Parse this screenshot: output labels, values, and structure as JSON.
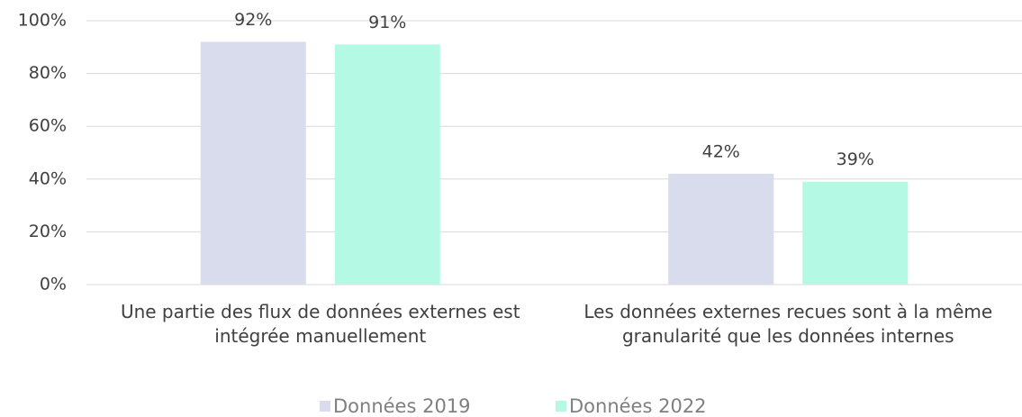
{
  "chart_data": {
    "type": "bar",
    "categories": [
      "Une partie des flux de données externes est intégrée manuellement",
      "Les données externes recues sont à la même granularité que les données internes"
    ],
    "series": [
      {
        "name": "Données 2019",
        "color": "#d9dcec",
        "values": [
          92,
          42
        ],
        "value_labels": [
          "92%",
          "42%"
        ]
      },
      {
        "name": "Données 2022",
        "color": "#b3f9e4",
        "values": [
          91,
          39
        ],
        "value_labels": [
          "91%",
          "39%"
        ]
      }
    ],
    "ylim": [
      0,
      100
    ],
    "yticks": [
      {
        "value": 0,
        "label": "0%"
      },
      {
        "value": 20,
        "label": "20%"
      },
      {
        "value": 40,
        "label": "40%"
      },
      {
        "value": 60,
        "label": "60%"
      },
      {
        "value": 80,
        "label": "80%"
      },
      {
        "value": 100,
        "label": "100%"
      }
    ],
    "grid": true,
    "legend": "bottom"
  }
}
